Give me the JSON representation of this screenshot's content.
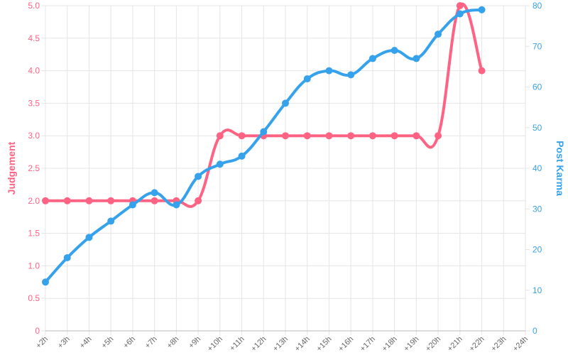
{
  "chart_data": {
    "type": "line",
    "categories": [
      "+2h",
      "+3h",
      "+4h",
      "+5h",
      "+6h",
      "+7h",
      "+8h",
      "+9h",
      "+10h",
      "+11h",
      "+12h",
      "+13h",
      "+14h",
      "+15h",
      "+16h",
      "+17h",
      "+18h",
      "+19h",
      "+20h",
      "+21h",
      "+22h",
      "+23h",
      "+24h"
    ],
    "ylabel": "Judgement",
    "y2label": "Post Karma",
    "ylim": [
      0,
      5
    ],
    "yticks": [
      0,
      0.5,
      {
        "value": 1,
        "label": "1.0"
      },
      1.5,
      {
        "value": 2,
        "label": "2.0"
      },
      2.5,
      {
        "value": 3,
        "label": "3.0"
      },
      3.5,
      {
        "value": 4,
        "label": "4.0"
      },
      4.5,
      {
        "value": 5,
        "label": "5.0"
      }
    ],
    "y2lim": [
      0,
      80
    ],
    "y2ticks": [
      0,
      10,
      20,
      30,
      40,
      50,
      60,
      70,
      80
    ],
    "grid": true,
    "series": [
      {
        "name": "Judgement",
        "color": "#ff6384",
        "values": [
          2,
          2,
          2,
          2,
          2,
          2,
          2,
          2,
          3,
          3,
          3,
          3,
          3,
          3,
          3,
          3,
          3,
          3,
          3,
          5,
          4,
          null,
          null
        ]
      },
      {
        "name": "Post Karma",
        "color": "#36a2eb",
        "axis": "y2",
        "values": [
          12,
          18,
          23,
          27,
          31,
          34,
          31,
          38,
          41,
          43,
          49,
          56,
          62,
          64,
          63,
          67,
          69,
          67,
          73,
          78,
          79,
          null,
          null
        ]
      }
    ]
  }
}
